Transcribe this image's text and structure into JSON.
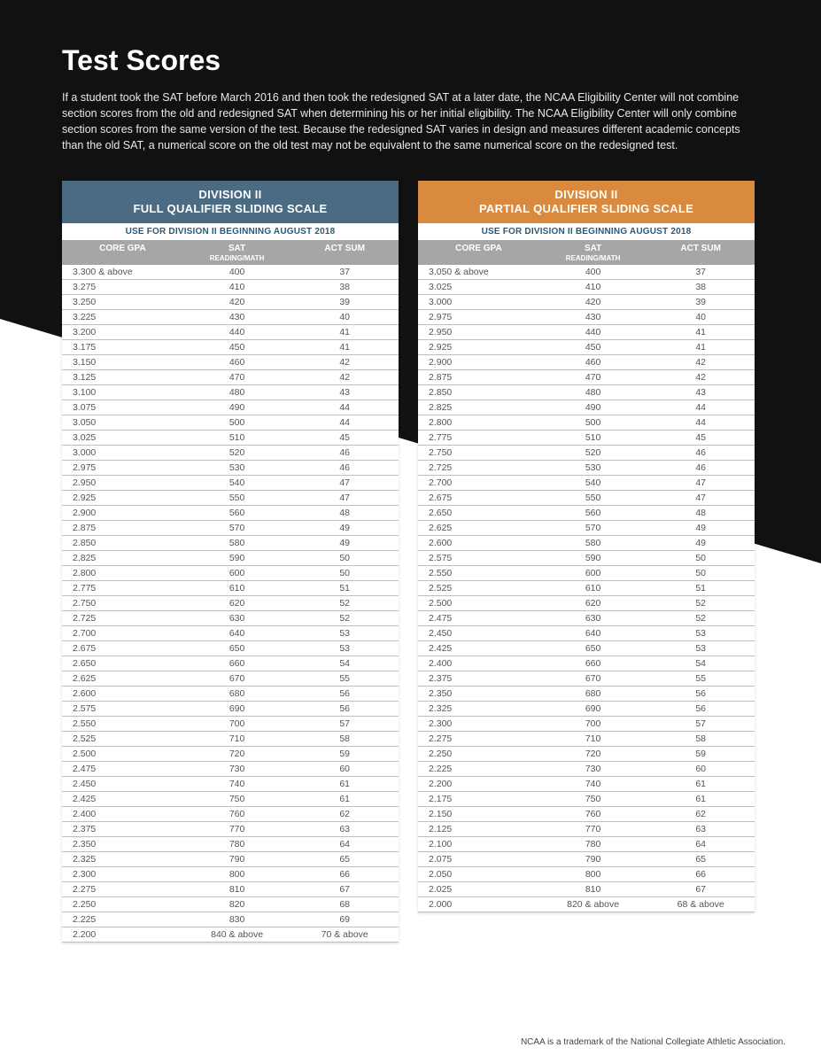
{
  "page": {
    "title": "Test Scores",
    "intro": "If a student took the SAT before March 2016 and then took the redesigned SAT at a later date, the NCAA Eligibility Center will not combine section scores from the old and redesigned SAT when determining his or her initial eligibility. The NCAA Eligibility Center will only combine section scores from the same version of the test. Because the redesigned SAT varies in design and measures different academic concepts than the old SAT, a numerical score on the old test may not be equivalent to the same numerical score on the redesigned test.",
    "footnote": "NCAA is a trademark of the National Collegiate Athletic Association."
  },
  "colors": {
    "full_header": "#4a6b82",
    "partial_header": "#d98a3e",
    "grey_header": "#a6a6a6",
    "subheader_text": "#2a5a7a"
  },
  "columns": {
    "c1": "CORE GPA",
    "c2": "SAT",
    "c3": "ACT SUM",
    "sub2": "READING/MATH"
  },
  "full": {
    "title_l1": "DIVISION II",
    "title_l2": "FULL QUALIFIER SLIDING SCALE",
    "subtitle": "USE FOR DIVISION II BEGINNING AUGUST 2018",
    "rows": [
      [
        "3.300 & above",
        "400",
        "37"
      ],
      [
        "3.275",
        "410",
        "38"
      ],
      [
        "3.250",
        "420",
        "39"
      ],
      [
        "3.225",
        "430",
        "40"
      ],
      [
        "3.200",
        "440",
        "41"
      ],
      [
        "3.175",
        "450",
        "41"
      ],
      [
        "3.150",
        "460",
        "42"
      ],
      [
        "3.125",
        "470",
        "42"
      ],
      [
        "3.100",
        "480",
        "43"
      ],
      [
        "3.075",
        "490",
        "44"
      ],
      [
        "3.050",
        "500",
        "44"
      ],
      [
        "3.025",
        "510",
        "45"
      ],
      [
        "3.000",
        "520",
        "46"
      ],
      [
        "2.975",
        "530",
        "46"
      ],
      [
        "2.950",
        "540",
        "47"
      ],
      [
        "2.925",
        "550",
        "47"
      ],
      [
        "2.900",
        "560",
        "48"
      ],
      [
        "2.875",
        "570",
        "49"
      ],
      [
        "2.850",
        "580",
        "49"
      ],
      [
        "2.825",
        "590",
        "50"
      ],
      [
        "2.800",
        "600",
        "50"
      ],
      [
        "2.775",
        "610",
        "51"
      ],
      [
        "2.750",
        "620",
        "52"
      ],
      [
        "2.725",
        "630",
        "52"
      ],
      [
        "2.700",
        "640",
        "53"
      ],
      [
        "2.675",
        "650",
        "53"
      ],
      [
        "2.650",
        "660",
        "54"
      ],
      [
        "2.625",
        "670",
        "55"
      ],
      [
        "2.600",
        "680",
        "56"
      ],
      [
        "2.575",
        "690",
        "56"
      ],
      [
        "2.550",
        "700",
        "57"
      ],
      [
        "2.525",
        "710",
        "58"
      ],
      [
        "2.500",
        "720",
        "59"
      ],
      [
        "2.475",
        "730",
        "60"
      ],
      [
        "2.450",
        "740",
        "61"
      ],
      [
        "2.425",
        "750",
        "61"
      ],
      [
        "2.400",
        "760",
        "62"
      ],
      [
        "2.375",
        "770",
        "63"
      ],
      [
        "2.350",
        "780",
        "64"
      ],
      [
        "2.325",
        "790",
        "65"
      ],
      [
        "2.300",
        "800",
        "66"
      ],
      [
        "2.275",
        "810",
        "67"
      ],
      [
        "2.250",
        "820",
        "68"
      ],
      [
        "2.225",
        "830",
        "69"
      ],
      [
        "2.200",
        "840 & above",
        "70 & above"
      ]
    ]
  },
  "partial": {
    "title_l1": "DIVISION II",
    "title_l2": "PARTIAL QUALIFIER SLIDING SCALE",
    "subtitle": "USE FOR DIVISION II BEGINNING AUGUST 2018",
    "rows": [
      [
        "3.050 & above",
        "400",
        "37"
      ],
      [
        "3.025",
        "410",
        "38"
      ],
      [
        "3.000",
        "420",
        "39"
      ],
      [
        "2.975",
        "430",
        "40"
      ],
      [
        "2.950",
        "440",
        "41"
      ],
      [
        "2.925",
        "450",
        "41"
      ],
      [
        "2.900",
        "460",
        "42"
      ],
      [
        "2.875",
        "470",
        "42"
      ],
      [
        "2.850",
        "480",
        "43"
      ],
      [
        "2.825",
        "490",
        "44"
      ],
      [
        "2.800",
        "500",
        "44"
      ],
      [
        "2.775",
        "510",
        "45"
      ],
      [
        "2.750",
        "520",
        "46"
      ],
      [
        "2.725",
        "530",
        "46"
      ],
      [
        "2.700",
        "540",
        "47"
      ],
      [
        "2.675",
        "550",
        "47"
      ],
      [
        "2.650",
        "560",
        "48"
      ],
      [
        "2.625",
        "570",
        "49"
      ],
      [
        "2.600",
        "580",
        "49"
      ],
      [
        "2.575",
        "590",
        "50"
      ],
      [
        "2.550",
        "600",
        "50"
      ],
      [
        "2.525",
        "610",
        "51"
      ],
      [
        "2.500",
        "620",
        "52"
      ],
      [
        "2.475",
        "630",
        "52"
      ],
      [
        "2.450",
        "640",
        "53"
      ],
      [
        "2.425",
        "650",
        "53"
      ],
      [
        "2.400",
        "660",
        "54"
      ],
      [
        "2.375",
        "670",
        "55"
      ],
      [
        "2.350",
        "680",
        "56"
      ],
      [
        "2.325",
        "690",
        "56"
      ],
      [
        "2.300",
        "700",
        "57"
      ],
      [
        "2.275",
        "710",
        "58"
      ],
      [
        "2.250",
        "720",
        "59"
      ],
      [
        "2.225",
        "730",
        "60"
      ],
      [
        "2.200",
        "740",
        "61"
      ],
      [
        "2.175",
        "750",
        "61"
      ],
      [
        "2.150",
        "760",
        "62"
      ],
      [
        "2.125",
        "770",
        "63"
      ],
      [
        "2.100",
        "780",
        "64"
      ],
      [
        "2.075",
        "790",
        "65"
      ],
      [
        "2.050",
        "800",
        "66"
      ],
      [
        "2.025",
        "810",
        "67"
      ],
      [
        "2.000",
        "820 & above",
        "68 & above"
      ]
    ]
  }
}
